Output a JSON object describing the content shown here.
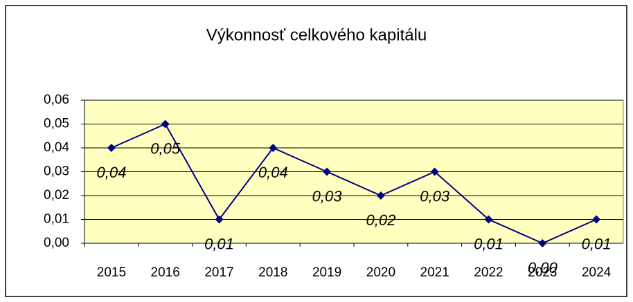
{
  "chart_data": {
    "type": "line",
    "title": "Výkonnosť celkového kapitálu",
    "categories": [
      "2015",
      "2016",
      "2017",
      "2018",
      "2019",
      "2020",
      "2021",
      "2022",
      "2023",
      "2024"
    ],
    "series": [
      {
        "name": "Výkonnosť celkového kapitálu",
        "color": "#000080",
        "values": [
          0.04,
          0.05,
          0.01,
          0.04,
          0.03,
          0.02,
          0.03,
          0.01,
          0.0,
          0.01
        ],
        "value_labels": [
          "0,04",
          "0,05",
          "0,01",
          "0,04",
          "0,03",
          "0,02",
          "0,03",
          "0,01",
          "0,00",
          "0,01"
        ]
      }
    ],
    "ylim": [
      0,
      0.06
    ],
    "yticks": [
      {
        "value": 0,
        "label": "0,00"
      },
      {
        "value": 0.01,
        "label": "0,01"
      },
      {
        "value": 0.02,
        "label": "0,02"
      },
      {
        "value": 0.03,
        "label": "0,03"
      },
      {
        "value": 0.04,
        "label": "0,04"
      },
      {
        "value": 0.05,
        "label": "0,05"
      },
      {
        "value": 0.06,
        "label": "0,06"
      }
    ],
    "grid": true,
    "plot_background": "#ffffc0"
  }
}
